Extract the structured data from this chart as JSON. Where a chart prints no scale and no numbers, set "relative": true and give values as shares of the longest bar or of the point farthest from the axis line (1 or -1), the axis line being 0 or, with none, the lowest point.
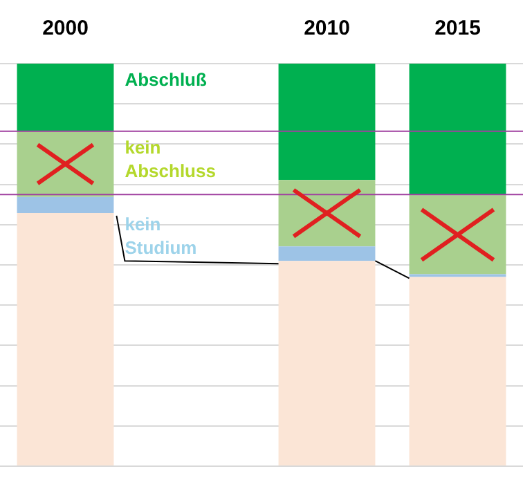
{
  "chart_data": {
    "type": "bar",
    "stacked": true,
    "relative": true,
    "grid": "y",
    "legend": false,
    "categories": [
      "2000",
      null,
      "2010",
      "2015"
    ],
    "series": [
      {
        "color": "#fbe5d6",
        "values": [
          0.629,
          null,
          0.51,
          0.47
        ]
      },
      {
        "name": "kein Studium",
        "color": "#9dc3e6",
        "values": [
          0.04,
          null,
          0.036,
          0.007
        ]
      },
      {
        "name": "kein Abschluss",
        "color": "#a9d08e",
        "values": [
          0.163,
          null,
          0.165,
          0.196
        ]
      },
      {
        "name": "Abschluß",
        "color": "#00b050",
        "values": [
          0.168,
          null,
          0.289,
          0.327
        ]
      }
    ],
    "ref_lines": [
      {
        "axis": "y",
        "value": 0.832,
        "color": "#a040a0"
      },
      {
        "axis": "y",
        "value": 0.675,
        "color": "#a040a0"
      }
    ]
  }
}
